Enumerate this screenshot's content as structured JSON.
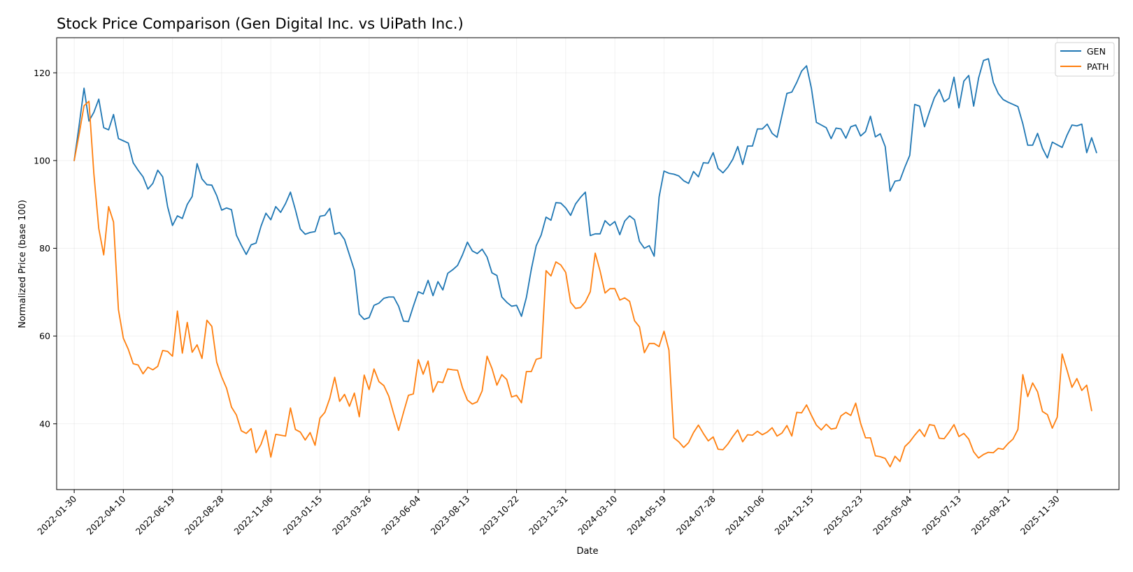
{
  "chart_data": {
    "type": "line",
    "title": "Stock Price Comparison (Gen Digital Inc. vs UiPath Inc.)",
    "xlabel": "Date",
    "ylabel": "Normalized Price (base 100)",
    "x_ticks": [
      "2022-01-30",
      "2022-04-10",
      "2022-06-19",
      "2022-08-28",
      "2022-11-06",
      "2023-01-15",
      "2023-03-26",
      "2023-06-04",
      "2023-08-13",
      "2023-10-22",
      "2023-12-31",
      "2024-03-10",
      "2024-05-19",
      "2024-07-28",
      "2024-10-06",
      "2024-12-15",
      "2025-02-23",
      "2025-05-04",
      "2025-07-13",
      "2025-09-21",
      "2025-11-30"
    ],
    "y_ticks": [
      40,
      60,
      80,
      100,
      120
    ],
    "ylim": [
      25,
      128
    ],
    "xlim": [
      "2022-01-05",
      "2026-02-26"
    ],
    "grid": true,
    "legend_position": "top-right",
    "start_date": "2022-01-30",
    "step_days": 7,
    "series": [
      {
        "name": "GEN",
        "color": "#1f77b4",
        "values": [
          100,
          108,
          116.5,
          109,
          111,
          114,
          107.5,
          107,
          110.5,
          105,
          104.5,
          104,
          99.5,
          97.8,
          96.3,
          93.5,
          94.8,
          97.8,
          96.3,
          89.5,
          85.2,
          87.4,
          86.8,
          90,
          91.8,
          99.3,
          95.8,
          94.5,
          94.4,
          92,
          88.7,
          89.2,
          88.8,
          83,
          80.7,
          78.6,
          80.8,
          81.2,
          85,
          88,
          86.5,
          89.5,
          88.2,
          90.2,
          92.8,
          88.8,
          84.4,
          83.2,
          83.6,
          83.8,
          87.3,
          87.5,
          89.1,
          83.2,
          83.6,
          82,
          78.5,
          75,
          65,
          63.8,
          64.2,
          67,
          67.5,
          68.6,
          68.9,
          68.9,
          66.8,
          63.4,
          63.3,
          66.8,
          70.1,
          69.6,
          72.7,
          69.2,
          72.4,
          70.5,
          74.3,
          75.1,
          76.1,
          78.5,
          81.4,
          79.4,
          78.8,
          79.8,
          78,
          74.4,
          73.8,
          68.9,
          67.7,
          66.8,
          67,
          64.5,
          68.8,
          75.2,
          80.6,
          83,
          87.1,
          86.4,
          90.4,
          90.3,
          89.2,
          87.5,
          90.1,
          91.6,
          92.8,
          82.9,
          83.3,
          83.3,
          86.3,
          85.2,
          86.1,
          83.1,
          86.2,
          87.4,
          86.5,
          81.6,
          80,
          80.6,
          78.2,
          91.7,
          97.6,
          97.1,
          96.9,
          96.5,
          95.4,
          94.8,
          97.5,
          96.3,
          99.5,
          99.4,
          101.8,
          98.2,
          97.2,
          98.5,
          100.3,
          103.2,
          99.1,
          103.3,
          103.3,
          107.2,
          107.2,
          108.3,
          106.2,
          105.3,
          110.3,
          115.3,
          115.6,
          117.8,
          120.4,
          121.6,
          116.4,
          108.7,
          108.1,
          107.5,
          105,
          107.4,
          107.2,
          105.1,
          107.7,
          108.1,
          105.6,
          106.6,
          110.1,
          105.4,
          106.1,
          103.2,
          93,
          95.3,
          95.5,
          98.5,
          101.2,
          112.8,
          112.4,
          107.7,
          111.1,
          114.3,
          116.2,
          113.4,
          114.2,
          119,
          112,
          118.1,
          119.4,
          112.4,
          118.8,
          122.8,
          123.2,
          117.8,
          115.3,
          113.9,
          113.3,
          112.8,
          112.3,
          108.4,
          103.5,
          103.5,
          106.2,
          102.8,
          100.6,
          104.2,
          103.6,
          103,
          105.8,
          108.1,
          107.9,
          108.3,
          101.8,
          105.2,
          101.8
        ]
      },
      {
        "name": "PATH",
        "color": "#ff7f0e",
        "values": [
          100,
          106,
          112.5,
          113.5,
          97,
          84.5,
          78.5,
          89.5,
          86,
          66,
          59.5,
          57,
          53.7,
          53.4,
          51.4,
          52.9,
          52.3,
          53.1,
          56.7,
          56.5,
          55.4,
          65.7,
          56.1,
          63.1,
          56.3,
          58,
          54.9,
          63.6,
          62.2,
          54,
          50.7,
          48.1,
          43.8,
          42,
          38.4,
          37.8,
          38.9,
          33.4,
          35.3,
          38.5,
          32.4,
          37.6,
          37.4,
          37.2,
          43.6,
          38.7,
          38.1,
          36.3,
          38,
          35.1,
          41.3,
          42.6,
          45.8,
          50.6,
          45.1,
          46.7,
          44,
          47,
          41.6,
          51.1,
          47.8,
          52.5,
          49.6,
          48.7,
          46.3,
          42.3,
          38.5,
          42.6,
          46.5,
          46.8,
          54.6,
          51.3,
          54.3,
          47.2,
          49.6,
          49.4,
          52.5,
          52.3,
          52.2,
          48.2,
          45.4,
          44.5,
          45,
          47.5,
          55.4,
          52.6,
          48.8,
          51.2,
          50.1,
          46.1,
          46.5,
          44.8,
          51.9,
          51.9,
          54.7,
          55,
          74.9,
          73.7,
          76.9,
          76.2,
          74.5,
          67.7,
          66.3,
          66.5,
          67.8,
          70.1,
          78.9,
          74.8,
          69.8,
          70.8,
          70.8,
          68.2,
          68.7,
          67.9,
          63.5,
          62.1,
          56.2,
          58.3,
          58.3,
          57.6,
          61.1,
          56.8,
          36.8,
          35.9,
          34.6,
          35.7,
          38,
          39.7,
          37.8,
          36.1,
          37,
          34.2,
          34.1,
          35.4,
          37.1,
          38.6,
          35.9,
          37.5,
          37.4,
          38.3,
          37.5,
          38.1,
          39.1,
          37.2,
          37.9,
          39.6,
          37.2,
          42.6,
          42.5,
          44.3,
          41.9,
          39.7,
          38.6,
          39.9,
          38.8,
          39,
          41.8,
          42.6,
          41.9,
          44.7,
          40.1,
          36.8,
          36.8,
          32.7,
          32.5,
          32.1,
          30.2,
          32.6,
          31.4,
          34.8,
          35.9,
          37.4,
          38.7,
          37.1,
          39.8,
          39.6,
          36.7,
          36.6,
          38.1,
          39.8,
          37.1,
          37.8,
          36.5,
          33.6,
          32.2,
          33,
          33.5,
          33.4,
          34.4,
          34.2,
          35.5,
          36.5,
          38.7,
          51.2,
          46.2,
          49.3,
          47.3,
          42.8,
          42.1,
          39,
          41.5,
          55.9,
          52.2,
          48.3,
          50.3,
          47.6,
          48.8,
          43
        ]
      }
    ]
  }
}
